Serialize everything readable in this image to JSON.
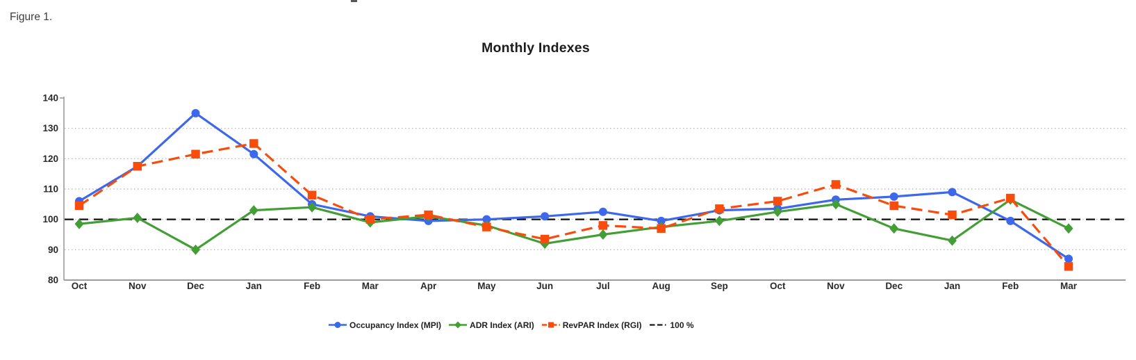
{
  "figure_label": "Figure 1.",
  "chart_data": {
    "type": "line",
    "title": "Monthly Indexes",
    "categories": [
      "Oct",
      "Nov",
      "Dec",
      "Jan",
      "Feb",
      "Mar",
      "Apr",
      "May",
      "Jun",
      "Jul",
      "Aug",
      "Sep",
      "Oct",
      "Nov",
      "Dec",
      "Jan",
      "Feb",
      "Mar"
    ],
    "series": [
      {
        "id": "mpi",
        "name": "Occupancy Index (MPI)",
        "color": "#3d68ec",
        "marker": "circle",
        "line": "solid",
        "values": [
          106,
          117.5,
          135,
          121.5,
          105,
          101,
          99.5,
          100,
          101,
          102.5,
          99.5,
          103,
          103.5,
          106.5,
          107.5,
          109,
          99.5,
          87
        ]
      },
      {
        "id": "ari",
        "name": "ADR Index (ARI)",
        "color": "#429e35",
        "marker": "diamond",
        "line": "solid",
        "values": [
          98.5,
          100.5,
          90,
          103,
          104,
          99,
          101,
          98,
          92,
          95,
          97.5,
          99.5,
          102.5,
          105,
          97,
          93,
          106.5,
          97
        ]
      },
      {
        "id": "rgi",
        "name": "RevPAR Index (RGI)",
        "color": "#f84c0c",
        "marker": "square",
        "line": "dashed",
        "values": [
          104.5,
          117.5,
          121.5,
          125,
          108,
          100,
          101.5,
          97.5,
          93.5,
          98,
          97,
          103.5,
          106,
          111.5,
          104.5,
          101.5,
          107,
          84.5
        ]
      }
    ],
    "reference_line": {
      "label": "100 %",
      "value": 100,
      "color": "#1a1a1a",
      "style": "dashed"
    },
    "y_ticks": [
      80,
      90,
      100,
      110,
      120,
      130,
      140
    ],
    "ylim": [
      80,
      140
    ],
    "grid": "horizontal-dotted",
    "grid_color": "#b3b3b3",
    "axis_color": "#9b9b9b",
    "legend_position": "bottom-center"
  }
}
